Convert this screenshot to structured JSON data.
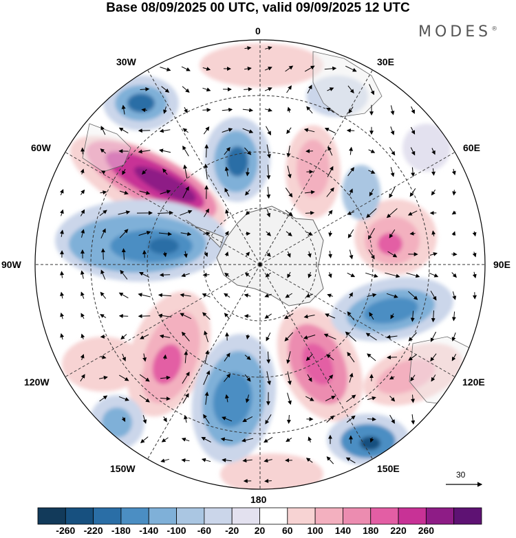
{
  "title": "Base 08/09/2025 00 UTC, valid 09/09/2025 12 UTC",
  "logo": {
    "text": "MODES",
    "mark": "®"
  },
  "longitude_labels": {
    "lon_0": "0",
    "lon_30e": "30E",
    "lon_60e": "60E",
    "lon_90e": "90E",
    "lon_120e": "120E",
    "lon_150e": "150E",
    "lon_180": "180",
    "lon_150w": "150W",
    "lon_120w": "120W",
    "lon_90w": "90W",
    "lon_60w": "60W",
    "lon_30w": "30W"
  },
  "reference_vector": {
    "value": "30"
  },
  "colorbar": {
    "ticks": [
      "-260",
      "-220",
      "-180",
      "-140",
      "-100",
      "-60",
      "-20",
      "20",
      "60",
      "100",
      "140",
      "180",
      "220",
      "260"
    ],
    "colors": [
      "#123a5a",
      "#17507f",
      "#2a6ea6",
      "#4b8ec3",
      "#7fb0d8",
      "#aac6e2",
      "#cbd6ea",
      "#e3e1ef",
      "#ffffff",
      "#f7d3d3",
      "#f3b0bf",
      "#ec8cb0",
      "#e35ea4",
      "#c83296",
      "#8e1c86",
      "#5e1273"
    ]
  },
  "colors": {
    "continent_fill": "#efefef",
    "coastline": "#666666",
    "grid": "#333333"
  }
}
